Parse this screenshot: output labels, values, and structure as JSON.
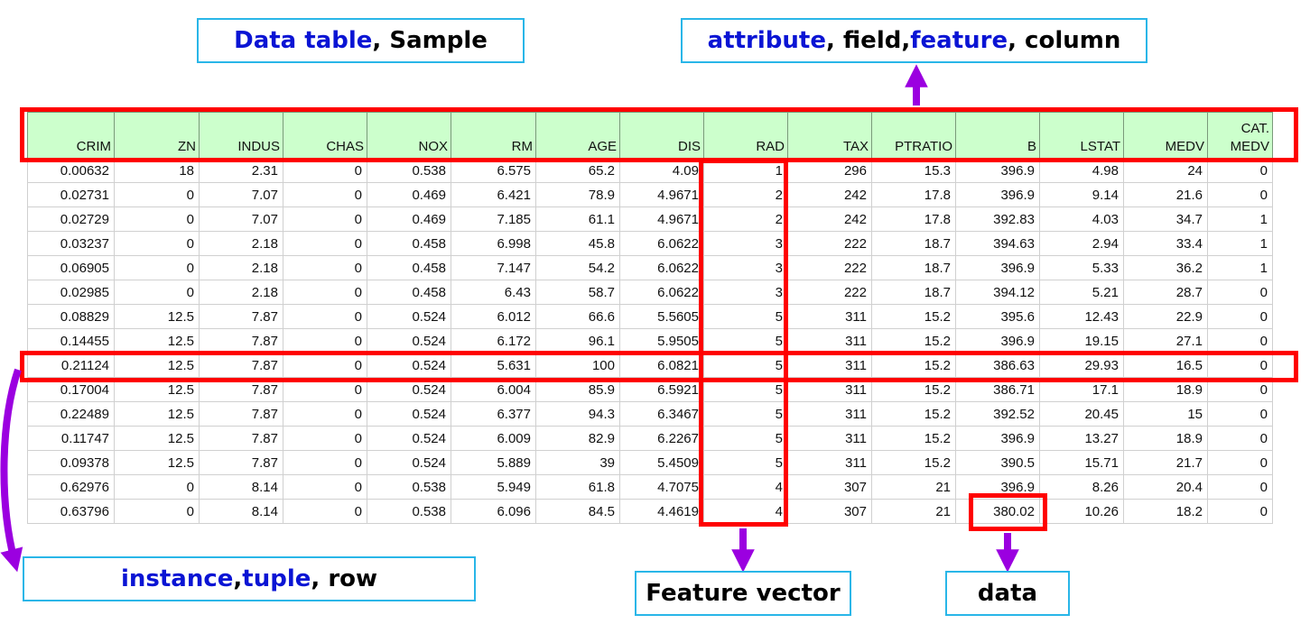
{
  "labels": {
    "data_table": {
      "part1": "Data table",
      "part2": ", Sample"
    },
    "attribute": {
      "p1": "attribute",
      "p2": ", field, ",
      "p3": "feature",
      "p4": ", column"
    },
    "instance": {
      "p1": "instance",
      "p2": ", ",
      "p3": "tuple",
      "p4": ", row"
    },
    "feature_vector": "Feature vector",
    "data": "data"
  },
  "colors": {
    "highlight_red": "#ff0000",
    "arrow_purple": "#9b00e0",
    "label_border": "#29b6e8",
    "label_blue_text": "#0a14d4",
    "header_green": "#ccffcc"
  },
  "table": {
    "headers": [
      "CRIM",
      "ZN",
      "INDUS",
      "CHAS",
      "NOX",
      "RM",
      "AGE",
      "DIS",
      "RAD",
      "TAX",
      "PTRATIO",
      "B",
      "LSTAT",
      "MEDV",
      [
        "CAT.",
        "MEDV"
      ]
    ],
    "rows": [
      [
        "0.00632",
        "18",
        "2.31",
        "0",
        "0.538",
        "6.575",
        "65.2",
        "4.09",
        "1",
        "296",
        "15.3",
        "396.9",
        "4.98",
        "24",
        "0"
      ],
      [
        "0.02731",
        "0",
        "7.07",
        "0",
        "0.469",
        "6.421",
        "78.9",
        "4.9671",
        "2",
        "242",
        "17.8",
        "396.9",
        "9.14",
        "21.6",
        "0"
      ],
      [
        "0.02729",
        "0",
        "7.07",
        "0",
        "0.469",
        "7.185",
        "61.1",
        "4.9671",
        "2",
        "242",
        "17.8",
        "392.83",
        "4.03",
        "34.7",
        "1"
      ],
      [
        "0.03237",
        "0",
        "2.18",
        "0",
        "0.458",
        "6.998",
        "45.8",
        "6.0622",
        "3",
        "222",
        "18.7",
        "394.63",
        "2.94",
        "33.4",
        "1"
      ],
      [
        "0.06905",
        "0",
        "2.18",
        "0",
        "0.458",
        "7.147",
        "54.2",
        "6.0622",
        "3",
        "222",
        "18.7",
        "396.9",
        "5.33",
        "36.2",
        "1"
      ],
      [
        "0.02985",
        "0",
        "2.18",
        "0",
        "0.458",
        "6.43",
        "58.7",
        "6.0622",
        "3",
        "222",
        "18.7",
        "394.12",
        "5.21",
        "28.7",
        "0"
      ],
      [
        "0.08829",
        "12.5",
        "7.87",
        "0",
        "0.524",
        "6.012",
        "66.6",
        "5.5605",
        "5",
        "311",
        "15.2",
        "395.6",
        "12.43",
        "22.9",
        "0"
      ],
      [
        "0.14455",
        "12.5",
        "7.87",
        "0",
        "0.524",
        "6.172",
        "96.1",
        "5.9505",
        "5",
        "311",
        "15.2",
        "396.9",
        "19.15",
        "27.1",
        "0"
      ],
      [
        "0.21124",
        "12.5",
        "7.87",
        "0",
        "0.524",
        "5.631",
        "100",
        "6.0821",
        "5",
        "311",
        "15.2",
        "386.63",
        "29.93",
        "16.5",
        "0"
      ],
      [
        "0.17004",
        "12.5",
        "7.87",
        "0",
        "0.524",
        "6.004",
        "85.9",
        "6.5921",
        "5",
        "311",
        "15.2",
        "386.71",
        "17.1",
        "18.9",
        "0"
      ],
      [
        "0.22489",
        "12.5",
        "7.87",
        "0",
        "0.524",
        "6.377",
        "94.3",
        "6.3467",
        "5",
        "311",
        "15.2",
        "392.52",
        "20.45",
        "15",
        "0"
      ],
      [
        "0.11747",
        "12.5",
        "7.87",
        "0",
        "0.524",
        "6.009",
        "82.9",
        "6.2267",
        "5",
        "311",
        "15.2",
        "396.9",
        "13.27",
        "18.9",
        "0"
      ],
      [
        "0.09378",
        "12.5",
        "7.87",
        "0",
        "0.524",
        "5.889",
        "39",
        "5.4509",
        "5",
        "311",
        "15.2",
        "390.5",
        "15.71",
        "21.7",
        "0"
      ],
      [
        "0.62976",
        "0",
        "8.14",
        "0",
        "0.538",
        "5.949",
        "61.8",
        "4.7075",
        "4",
        "307",
        "21",
        "396.9",
        "8.26",
        "20.4",
        "0"
      ],
      [
        "0.63796",
        "0",
        "8.14",
        "0",
        "0.538",
        "6.096",
        "84.5",
        "4.4619",
        "4",
        "307",
        "21",
        "380.02",
        "10.26",
        "18.2",
        "0"
      ]
    ]
  }
}
